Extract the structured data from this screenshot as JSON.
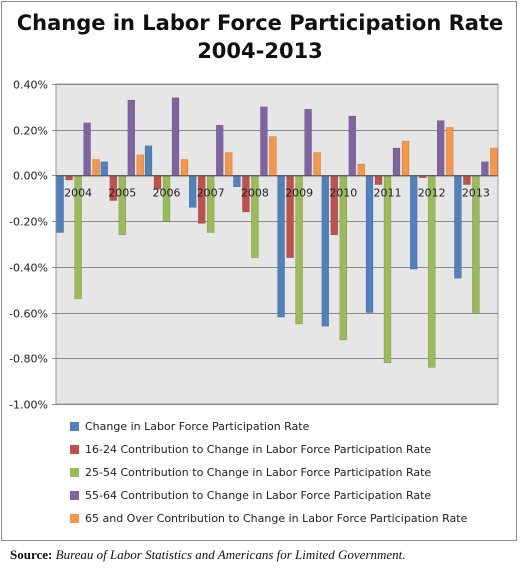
{
  "chart_data": {
    "type": "bar",
    "title_line1": "Change in Labor Force Participation Rate",
    "title_line2": "2004-2013",
    "categories": [
      "2004",
      "2005",
      "2006",
      "2007",
      "2008",
      "2009",
      "2010",
      "2011",
      "2012",
      "2013"
    ],
    "ylim": [
      -1.0,
      0.4
    ],
    "yticks": [
      "0.40%",
      "0.20%",
      "0.00%",
      "-0.20%",
      "-0.40%",
      "-0.60%",
      "-0.80%",
      "-1.00%"
    ],
    "ytick_values": [
      0.4,
      0.2,
      0.0,
      -0.2,
      -0.4,
      -0.6,
      -0.8,
      -1.0
    ],
    "grid": true,
    "legend_position": "bottom",
    "series": [
      {
        "name": "Change in Labor Force Participation Rate",
        "color": "#4f81bd",
        "values": [
          -0.25,
          0.06,
          0.13,
          -0.14,
          -0.05,
          -0.62,
          -0.66,
          -0.6,
          -0.41,
          -0.45
        ]
      },
      {
        "name": "16-24 Contribution to Change in Labor Force Participation Rate",
        "color": "#c0504d",
        "values": [
          -0.02,
          -0.11,
          -0.06,
          -0.21,
          -0.16,
          -0.36,
          -0.26,
          -0.04,
          -0.01,
          -0.04
        ]
      },
      {
        "name": "25-54 Contribution to Change in Labor Force Participation Rate",
        "color": "#9bbb59",
        "values": [
          -0.54,
          -0.26,
          -0.2,
          -0.25,
          -0.36,
          -0.65,
          -0.72,
          -0.82,
          -0.84,
          -0.6
        ]
      },
      {
        "name": "55-64 Contribution to Change in Labor Force Participation Rate",
        "color": "#8064a2",
        "values": [
          0.23,
          0.33,
          0.34,
          0.22,
          0.3,
          0.29,
          0.26,
          0.12,
          0.24,
          0.06
        ]
      },
      {
        "name": "65 and Over Contribution to Change in Labor Force Participation Rate",
        "color": "#f79646",
        "values": [
          0.07,
          0.09,
          0.07,
          0.1,
          0.17,
          0.1,
          0.05,
          0.15,
          0.21,
          0.12
        ]
      }
    ]
  },
  "source": {
    "label": "Source:",
    "text": "Bureau of Labor Statistics and Americans for Limited Government."
  }
}
